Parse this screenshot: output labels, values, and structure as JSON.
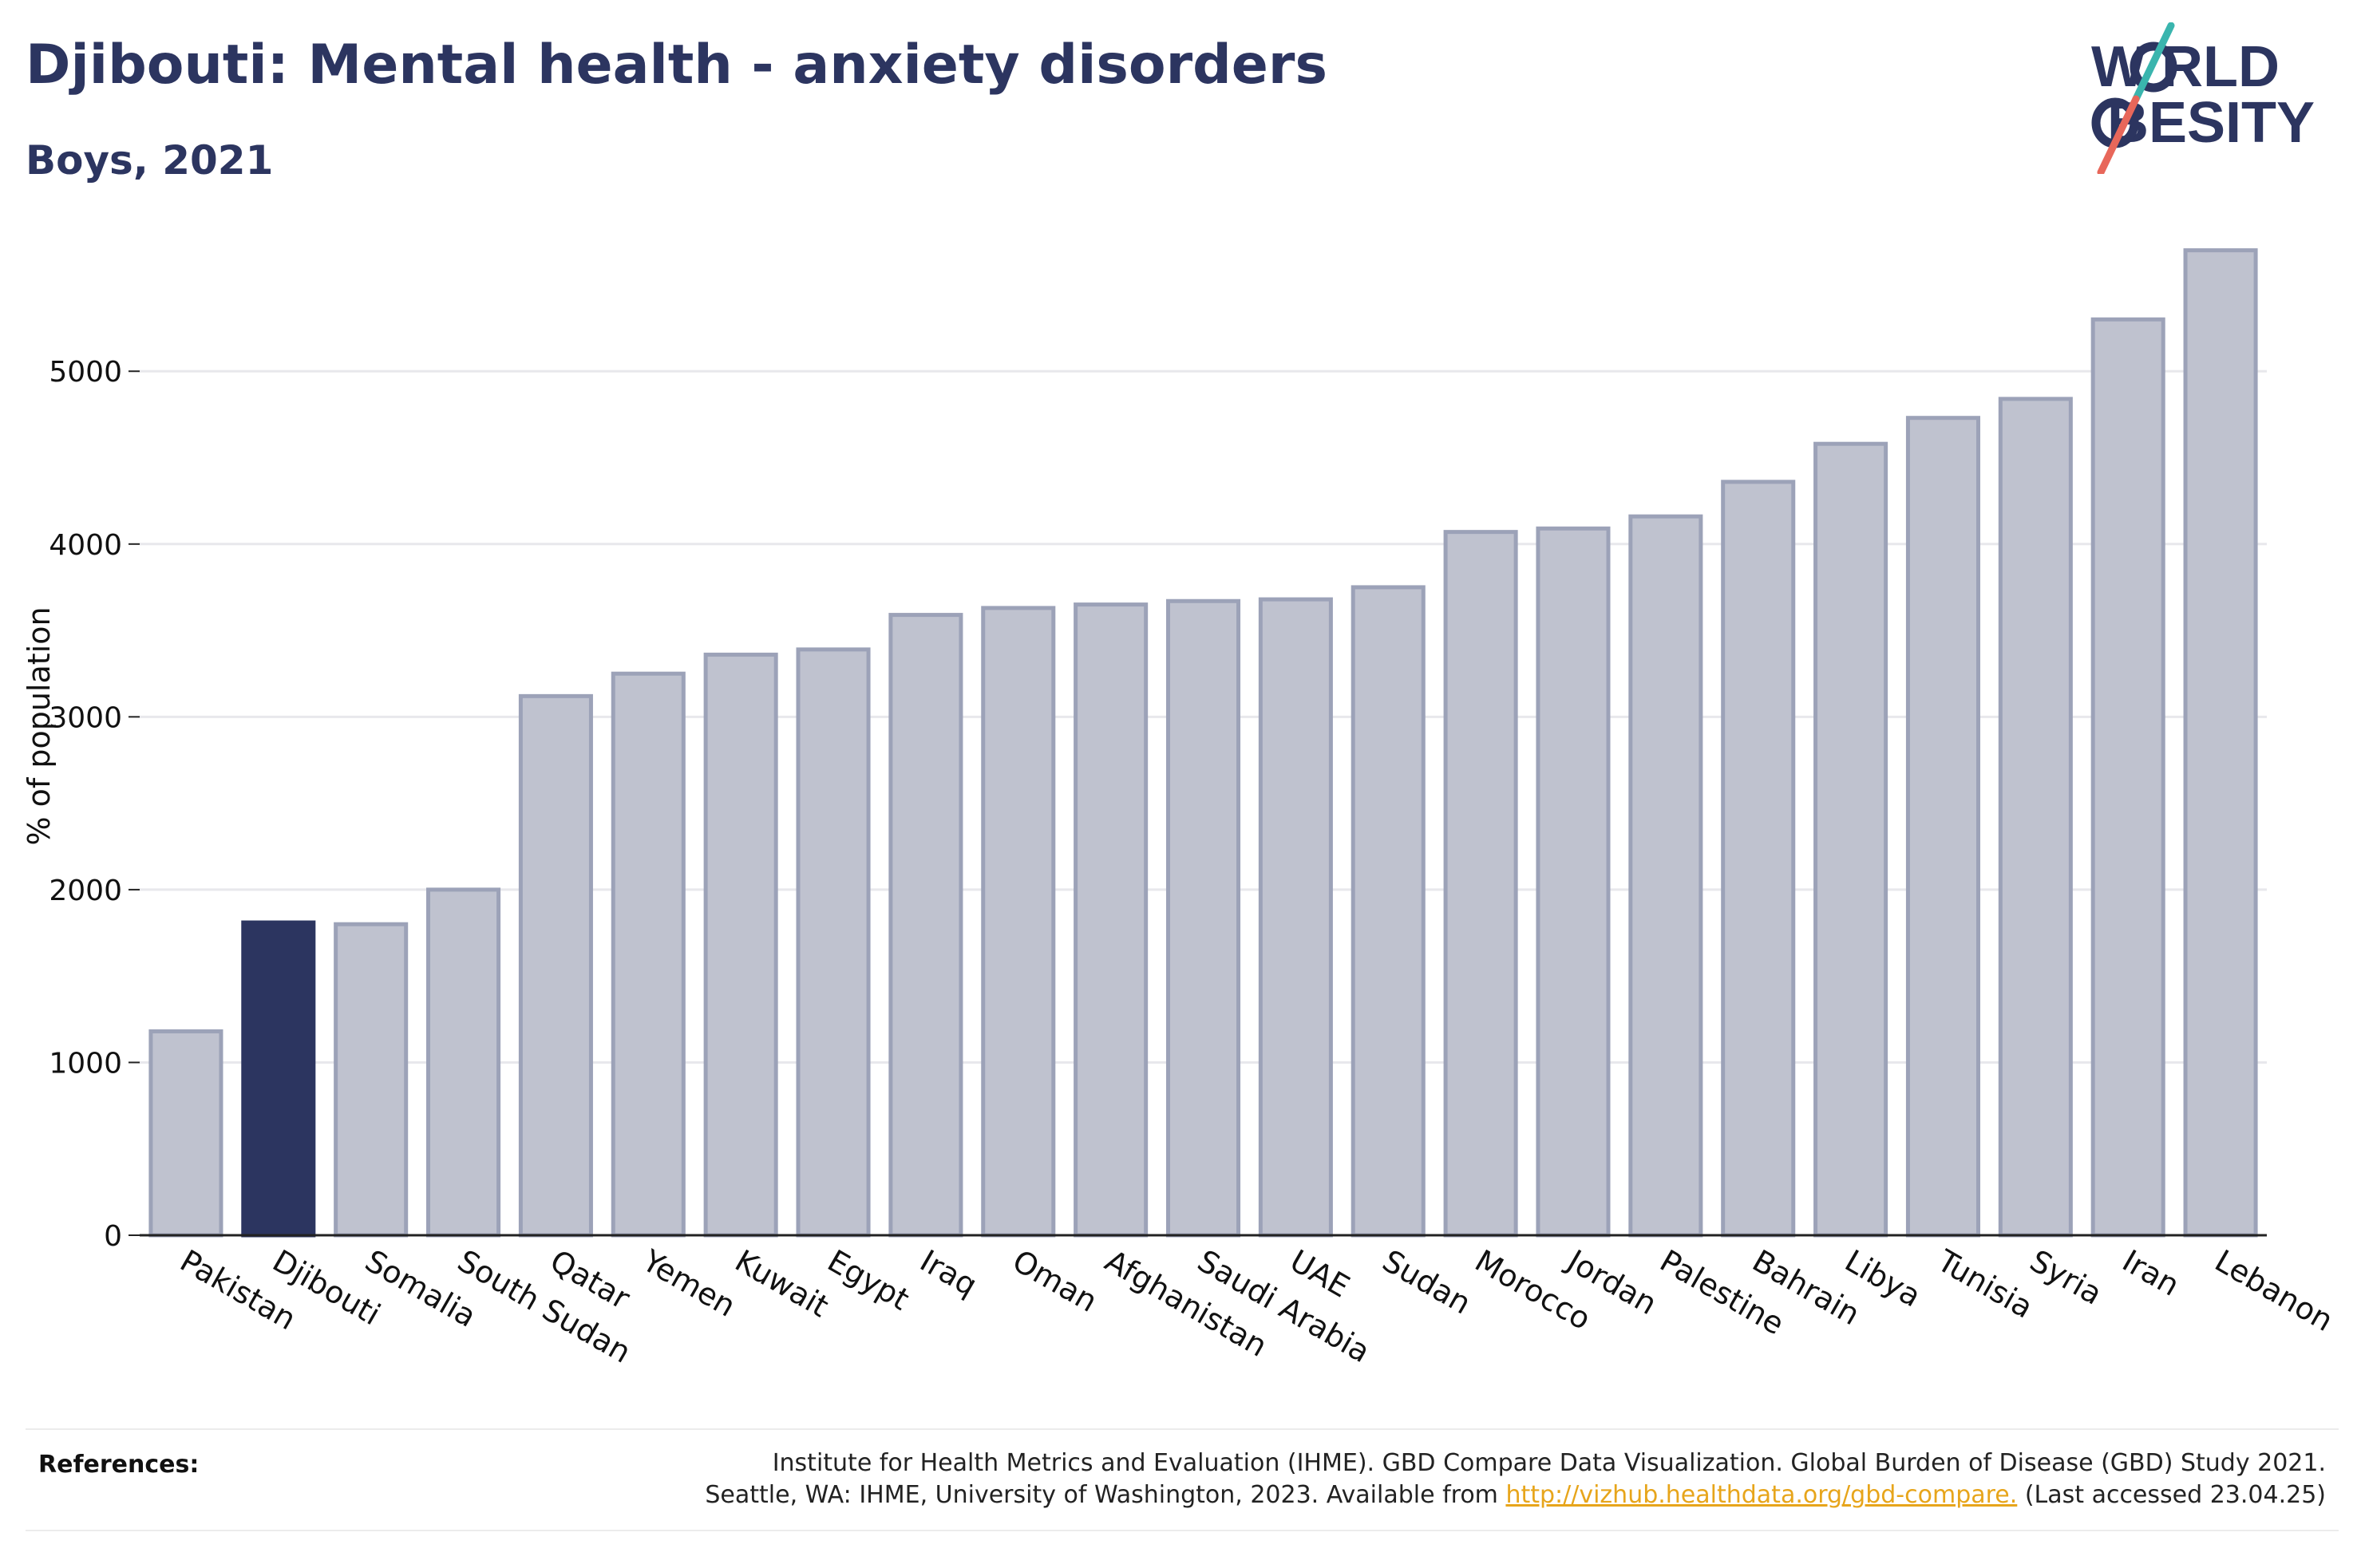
{
  "title": "Djibouti: Mental health - anxiety disorders",
  "subtitle": "Boys, 2021",
  "logo": {
    "line1": "W RLD",
    "line2": " BESITY",
    "accent_teal": "#3ab5ae",
    "accent_red": "#e8675a",
    "color": "#2c3560"
  },
  "colors": {
    "highlight": "#2c3560",
    "bar": "#bfc2cf",
    "bar_border": "#9ca2b8",
    "link": "#e7a51b"
  },
  "chart_data": {
    "type": "bar",
    "ylabel": "% of population",
    "xlabel": "",
    "ylim": [
      0,
      5800
    ],
    "yticks": [
      0,
      1000,
      2000,
      3000,
      4000,
      5000
    ],
    "grid": true,
    "highlight": "Djibouti",
    "categories": [
      "Pakistan",
      "Djibouti",
      "Somalia",
      "South Sudan",
      "Qatar",
      "Yemen",
      "Kuwait",
      "Egypt",
      "Iraq",
      "Oman",
      "Afghanistan",
      "Saudi Arabia",
      "UAE",
      "Sudan",
      "Morocco",
      "Jordan",
      "Palestine",
      "Bahrain",
      "Libya",
      "Tunisia",
      "Syria",
      "Iran",
      "Lebanon"
    ],
    "values": [
      1180,
      1810,
      1800,
      2000,
      3120,
      3250,
      3360,
      3390,
      3590,
      3630,
      3650,
      3670,
      3680,
      3750,
      4070,
      4090,
      4160,
      4360,
      4580,
      4730,
      4840,
      5300,
      5700
    ]
  },
  "footer": {
    "references_label": "References:",
    "line1": "Institute for Health Metrics and Evaluation (IHME). GBD Compare Data Visualization. Global Burden of Disease (GBD) Study 2021.",
    "line2_prefix": "Seattle, WA: IHME, University of Washington, 2023. Available from ",
    "link": "http://vizhub.healthdata.org/gbd-compare.",
    "line2_suffix": " (Last accessed 23.04.25)"
  }
}
